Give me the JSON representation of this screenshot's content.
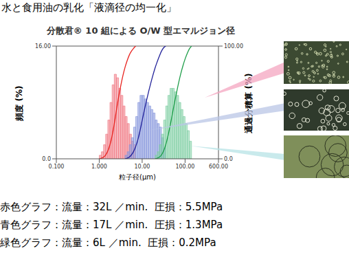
{
  "heading": "水と食用油の乳化「液滴径の均一化」",
  "notes": [
    "赤色グラフ：流量：32L ／min.  圧損：5.5MPa",
    "青色グラフ：流量：17L ／min.  圧損：1.3MPa",
    "緑色グラフ：流量：6L ／min.  圧損：0.2MPa"
  ],
  "chart_data": {
    "type": "histogram",
    "title": "分散君® 10 組による O/W 型エマルジョン径",
    "x_label": "粒子径(μm)",
    "y_label": "頻度 (%)",
    "y2_label": "通過分積算 (%)",
    "log": "x",
    "grid": false,
    "xlim": [
      0.1,
      600
    ],
    "xticks": [
      {
        "value": 0.1,
        "label": "0.100"
      },
      {
        "value": 1,
        "label": "1.000"
      },
      {
        "value": 10,
        "label": "10.00"
      },
      {
        "value": 100,
        "label": "100.00"
      },
      {
        "value": 600,
        "label": "600.00"
      }
    ],
    "ylim": [
      0,
      16
    ],
    "yticks": [
      {
        "value": 0,
        "label": "0.0"
      },
      {
        "value": 16,
        "label": "16.00"
      }
    ],
    "y2lim": [
      0,
      100
    ],
    "y2ticks": [
      {
        "value": 0,
        "label": "0.0"
      },
      {
        "value": 100,
        "label": "100.00"
      }
    ],
    "series": [
      {
        "type": "histogram",
        "color": "#f07c86",
        "bins": [
          1.0,
          1.122,
          1.259,
          1.413,
          1.585,
          1.778,
          1.995,
          2.239,
          2.512,
          2.818,
          3.162,
          3.548,
          3.981,
          4.467,
          5.012,
          5.623,
          6.31,
          7.079
        ],
        "values": [
          0.5,
          1.0,
          2.0,
          3.5,
          5.5,
          8.0,
          10.5,
          12.0,
          11.5,
          10.0,
          9.0,
          7.5,
          6.0,
          5.0,
          3.5,
          2.5,
          2.0
        ]
      },
      {
        "type": "histogram",
        "color": "#8797dd",
        "bins": [
          3.981,
          4.467,
          5.012,
          5.623,
          6.31,
          7.079,
          7.943,
          8.913,
          10,
          11.22,
          12.59,
          14.13,
          15.85,
          17.78,
          19.95,
          22.39,
          25.12,
          28.18,
          31.62,
          35.48
        ],
        "values": [
          0.5,
          1.0,
          2.0,
          3.0,
          4.5,
          6.0,
          8.0,
          9.0,
          9.0,
          8.5,
          8.0,
          7.5,
          7.0,
          6.5,
          5.5,
          5.0,
          4.5,
          3.0,
          1.5
        ]
      },
      {
        "type": "histogram",
        "color": "#7fcfa4",
        "bins": [
          19.95,
          22.39,
          25.12,
          28.18,
          31.62,
          35.48,
          39.81,
          44.67,
          50.12,
          56.23,
          63.1,
          70.79,
          79.43,
          89.13,
          100,
          112.2,
          125.9,
          141.3
        ],
        "values": [
          0.5,
          1.0,
          2.0,
          3.5,
          5.5,
          7.5,
          9.0,
          10.0,
          10.0,
          9.5,
          9.0,
          8.0,
          7.0,
          6.0,
          5.0,
          4.0,
          2.5
        ]
      },
      {
        "type": "line",
        "axis": "y2",
        "color": "#e8231f",
        "line_style": "solid",
        "x": [
          1.0,
          1.122,
          1.259,
          1.413,
          1.585,
          1.778,
          1.995,
          2.239,
          2.512,
          2.818,
          3.162,
          3.548,
          3.981,
          4.467,
          5.012,
          5.623,
          6.31,
          7.079
        ],
        "values": [
          0,
          0.5,
          1.5,
          3.5,
          7,
          12.5,
          20.5,
          31,
          43,
          54.5,
          64.5,
          73.5,
          81,
          87,
          92,
          95.5,
          98,
          100
        ]
      },
      {
        "type": "line",
        "axis": "y2",
        "color": "#22229a",
        "line_style": "solid",
        "x": [
          3.981,
          4.467,
          5.012,
          5.623,
          6.31,
          7.079,
          7.943,
          8.913,
          10,
          11.22,
          12.59,
          14.13,
          15.85,
          17.78,
          19.95,
          22.39,
          25.12,
          28.18,
          31.62,
          35.48
        ],
        "values": [
          0,
          0.5,
          1.5,
          3.5,
          6.5,
          11,
          17,
          25,
          34,
          43,
          51.5,
          59.5,
          67,
          74,
          80.5,
          86,
          91,
          95.5,
          98.5,
          100
        ]
      },
      {
        "type": "line",
        "axis": "y2",
        "color": "#1f9e4a",
        "line_style": "solid",
        "x": [
          19.95,
          22.39,
          25.12,
          28.18,
          31.62,
          35.48,
          39.81,
          44.67,
          50.12,
          56.23,
          63.1,
          70.79,
          79.43,
          89.13,
          100,
          112.2,
          125.9,
          141.3
        ],
        "values": [
          0,
          0.5,
          1.5,
          3.5,
          7,
          12.5,
          20,
          29,
          39,
          49,
          58.5,
          67.5,
          75.5,
          82.5,
          88.5,
          93.5,
          97.5,
          100
        ]
      }
    ]
  }
}
